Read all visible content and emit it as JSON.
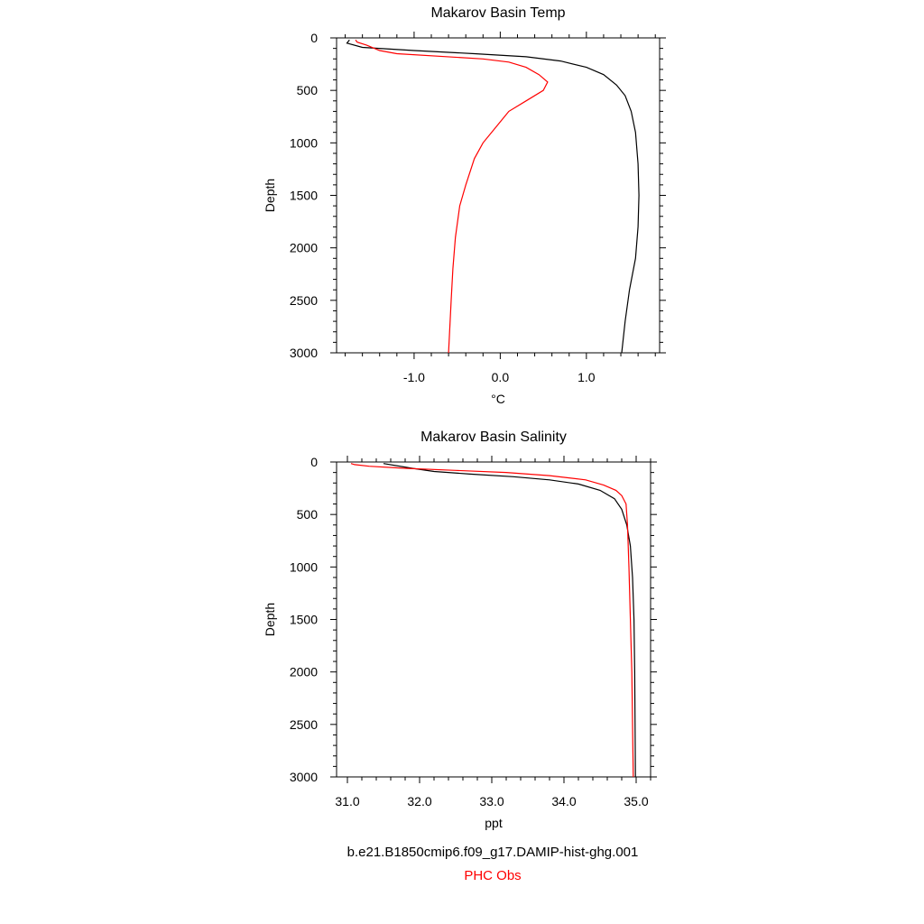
{
  "chart_data": [
    {
      "type": "line",
      "title": "Makarov Basin Temp",
      "xlabel": "°C",
      "ylabel": "Depth",
      "xlim": [
        -1.9,
        1.85
      ],
      "ylim": [
        3000,
        0
      ],
      "xticks": [
        -1.0,
        0.0,
        1.0
      ],
      "xtick_labels": [
        "-1.0",
        "0.0",
        "1.0"
      ],
      "yticks": [
        0,
        500,
        1000,
        1500,
        2000,
        2500,
        3000
      ],
      "ytick_labels": [
        "0",
        "500",
        "1000",
        "1500",
        "2000",
        "2500",
        "3000"
      ],
      "series": [
        {
          "color": "#000000",
          "points": [
            [
              -1.75,
              20
            ],
            [
              -1.78,
              50
            ],
            [
              -1.6,
              90
            ],
            [
              -1.0,
              120
            ],
            [
              -0.3,
              150
            ],
            [
              0.3,
              180
            ],
            [
              0.7,
              220
            ],
            [
              1.0,
              280
            ],
            [
              1.2,
              350
            ],
            [
              1.35,
              450
            ],
            [
              1.45,
              550
            ],
            [
              1.52,
              700
            ],
            [
              1.57,
              900
            ],
            [
              1.6,
              1200
            ],
            [
              1.61,
              1500
            ],
            [
              1.6,
              1800
            ],
            [
              1.57,
              2100
            ],
            [
              1.5,
              2400
            ],
            [
              1.45,
              2700
            ],
            [
              1.41,
              3000
            ]
          ]
        },
        {
          "color": "#ff0000",
          "points": [
            [
              -1.68,
              20
            ],
            [
              -1.66,
              40
            ],
            [
              -1.55,
              70
            ],
            [
              -1.4,
              120
            ],
            [
              -1.2,
              150
            ],
            [
              -0.2,
              200
            ],
            [
              0.1,
              230
            ],
            [
              0.3,
              280
            ],
            [
              0.45,
              350
            ],
            [
              0.55,
              420
            ],
            [
              0.5,
              500
            ],
            [
              0.3,
              600
            ],
            [
              0.1,
              700
            ],
            [
              -0.05,
              850
            ],
            [
              -0.2,
              1000
            ],
            [
              -0.3,
              1150
            ],
            [
              -0.4,
              1400
            ],
            [
              -0.47,
              1600
            ],
            [
              -0.52,
              1900
            ],
            [
              -0.55,
              2200
            ],
            [
              -0.57,
              2500
            ],
            [
              -0.6,
              3000
            ]
          ]
        }
      ]
    },
    {
      "type": "line",
      "title": "Makarov Basin Salinity",
      "xlabel": "ppt",
      "ylabel": "Depth",
      "xlim": [
        30.85,
        35.2
      ],
      "ylim": [
        3000,
        0
      ],
      "xticks": [
        31.0,
        32.0,
        33.0,
        34.0,
        35.0
      ],
      "xtick_labels": [
        "31.0",
        "32.0",
        "33.0",
        "34.0",
        "35.0"
      ],
      "yticks": [
        0,
        500,
        1000,
        1500,
        2000,
        2500,
        3000
      ],
      "ytick_labels": [
        "0",
        "500",
        "1000",
        "1500",
        "2000",
        "2500",
        "3000"
      ],
      "series": [
        {
          "color": "#000000",
          "points": [
            [
              31.5,
              15
            ],
            [
              31.9,
              60
            ],
            [
              32.2,
              90
            ],
            [
              32.7,
              115
            ],
            [
              33.3,
              140
            ],
            [
              33.8,
              170
            ],
            [
              34.2,
              210
            ],
            [
              34.5,
              270
            ],
            [
              34.7,
              350
            ],
            [
              34.8,
              450
            ],
            [
              34.87,
              600
            ],
            [
              34.92,
              800
            ],
            [
              34.95,
              1100
            ],
            [
              34.97,
              1500
            ],
            [
              34.98,
              2000
            ],
            [
              34.99,
              3000
            ]
          ]
        },
        {
          "color": "#ff0000",
          "points": [
            [
              31.05,
              15
            ],
            [
              31.1,
              25
            ],
            [
              31.3,
              40
            ],
            [
              31.8,
              60
            ],
            [
              32.5,
              80
            ],
            [
              33.2,
              100
            ],
            [
              33.8,
              130
            ],
            [
              34.3,
              170
            ],
            [
              34.55,
              220
            ],
            [
              34.72,
              270
            ],
            [
              34.8,
              320
            ],
            [
              34.86,
              400
            ],
            [
              34.88,
              600
            ],
            [
              34.9,
              1000
            ],
            [
              34.92,
              1500
            ],
            [
              34.94,
              2000
            ],
            [
              34.96,
              3000
            ]
          ]
        }
      ]
    }
  ],
  "captions": {
    "model": "b.e21.B1850cmip6.f09_g17.DAMIP-hist-ghg.001",
    "obs": "PHC Obs",
    "model_color": "#000000",
    "obs_color": "#ff0000"
  }
}
